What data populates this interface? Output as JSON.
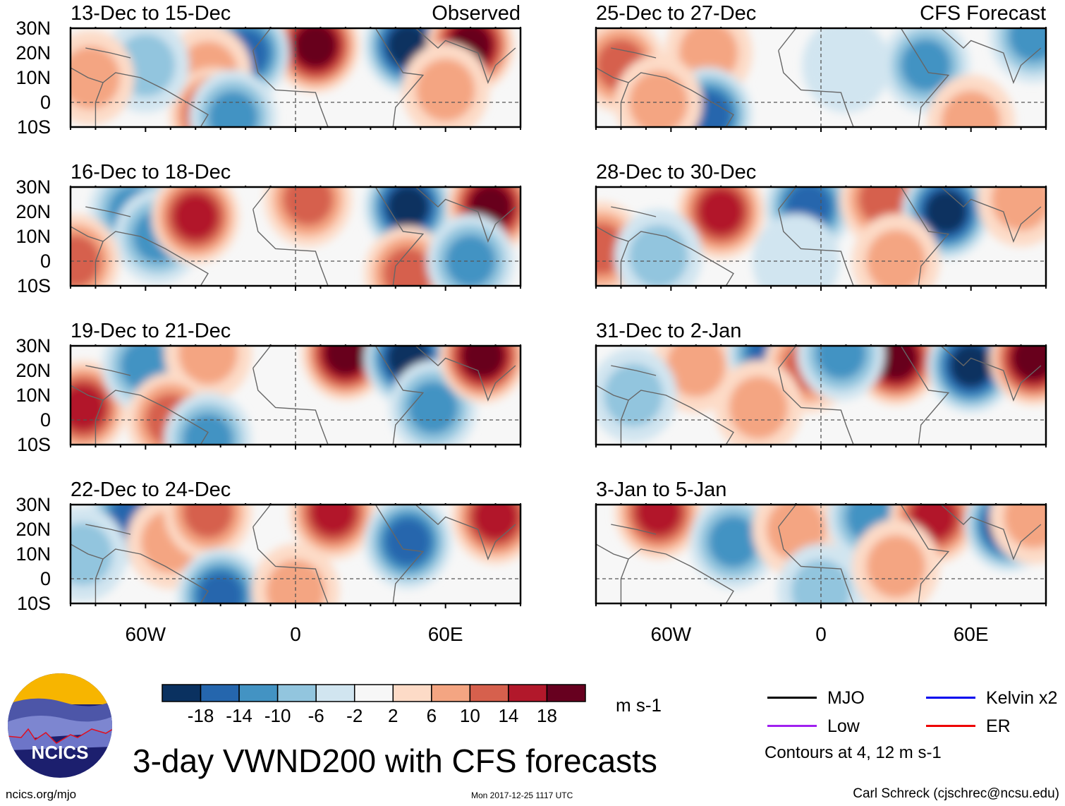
{
  "figure": {
    "title": "3-day VWND200 with CFS forecasts",
    "units": "m s-1",
    "site": "ncics.org/mjo",
    "timestamp": "Mon 2017-12-25 1117 UTC",
    "author": "Carl Schreck (cjschrec@ncsu.edu)",
    "logo_text": "NCICS",
    "observed_tag": "Observed",
    "forecast_tag": "CFS Forecast"
  },
  "chart_data": {
    "type": "heatmap",
    "title": "3-day VWND200 with CFS forecasts",
    "variable": "200-hPa meridional wind anomaly",
    "units": "m s-1",
    "lon_range": [
      -90,
      90
    ],
    "lat_range": [
      -10,
      30
    ],
    "y_ticks": [
      "30N",
      "20N",
      "10N",
      "0",
      "10S"
    ],
    "x_ticks": [
      "60W",
      "0",
      "60E"
    ],
    "colorbar": {
      "levels": [
        "-18",
        "-14",
        "-10",
        "-6",
        "-2",
        "2",
        "6",
        "10",
        "14",
        "18"
      ],
      "colors": [
        "#0a3160",
        "#2566ad",
        "#4393c3",
        "#92c5de",
        "#d1e5f0",
        "#f7f7f7",
        "#fddbc7",
        "#f4a582",
        "#d6604d",
        "#b2182b",
        "#67001f"
      ]
    },
    "legend": {
      "items": [
        {
          "label": "MJO",
          "color": "#000000"
        },
        {
          "label": "Kelvin x2",
          "color": "#0000ee"
        },
        {
          "label": "Low",
          "color": "#a020f0"
        },
        {
          "label": "ER",
          "color": "#ee0000"
        }
      ],
      "note": "Contours at 4, 12 m s-1",
      "placement": "bottom-right"
    },
    "panels": [
      {
        "title": "13-Dec to 15-Dec",
        "kind": "observed",
        "anomalies": [
          {
            "lon": 8,
            "lat": 23,
            "v": 20
          },
          {
            "lon": 45,
            "lat": 23,
            "v": -20
          },
          {
            "lon": 70,
            "lat": 23,
            "v": 18
          },
          {
            "lon": -20,
            "lat": 20,
            "v": -14
          },
          {
            "lon": -35,
            "lat": 12,
            "v": 8
          },
          {
            "lon": -33,
            "lat": -5,
            "v": 16
          },
          {
            "lon": -60,
            "lat": 15,
            "v": -8
          },
          {
            "lon": -82,
            "lat": 10,
            "v": 8
          },
          {
            "lon": -25,
            "lat": -6,
            "v": -10
          },
          {
            "lon": 60,
            "lat": 5,
            "v": 8
          }
        ]
      },
      {
        "title": "25-Dec to 27-Dec",
        "kind": "forecast",
        "anomalies": [
          {
            "lon": -80,
            "lat": 15,
            "v": 10
          },
          {
            "lon": -45,
            "lat": 20,
            "v": 8
          },
          {
            "lon": -45,
            "lat": -5,
            "v": -16
          },
          {
            "lon": 42,
            "lat": 15,
            "v": -10
          },
          {
            "lon": 10,
            "lat": 15,
            "v": -4
          },
          {
            "lon": 85,
            "lat": 27,
            "v": -10
          },
          {
            "lon": 60,
            "lat": -8,
            "v": 8
          },
          {
            "lon": -65,
            "lat": 0,
            "v": 6
          }
        ]
      },
      {
        "title": "16-Dec to 18-Dec",
        "kind": "observed",
        "anomalies": [
          {
            "lon": -65,
            "lat": 20,
            "v": -10
          },
          {
            "lon": -55,
            "lat": 10,
            "v": -12
          },
          {
            "lon": -40,
            "lat": 18,
            "v": 14
          },
          {
            "lon": 5,
            "lat": 25,
            "v": 12
          },
          {
            "lon": 45,
            "lat": 22,
            "v": -20
          },
          {
            "lon": 78,
            "lat": 22,
            "v": 18
          },
          {
            "lon": 45,
            "lat": -5,
            "v": 12
          },
          {
            "lon": 70,
            "lat": 0,
            "v": -12
          },
          {
            "lon": -88,
            "lat": 0,
            "v": 10
          }
        ]
      },
      {
        "title": "28-Dec to 30-Dec",
        "kind": "forecast",
        "anomalies": [
          {
            "lon": -40,
            "lat": 20,
            "v": 16
          },
          {
            "lon": -5,
            "lat": 22,
            "v": -14
          },
          {
            "lon": 25,
            "lat": 25,
            "v": 12
          },
          {
            "lon": 50,
            "lat": 20,
            "v": -18
          },
          {
            "lon": 80,
            "lat": 25,
            "v": 6
          },
          {
            "lon": -88,
            "lat": 5,
            "v": 10
          },
          {
            "lon": -65,
            "lat": 2,
            "v": -6
          },
          {
            "lon": -10,
            "lat": 0,
            "v": -4
          },
          {
            "lon": 30,
            "lat": 0,
            "v": 6
          }
        ]
      },
      {
        "title": "19-Dec to 21-Dec",
        "kind": "observed",
        "anomalies": [
          {
            "lon": -85,
            "lat": 5,
            "v": 16
          },
          {
            "lon": -60,
            "lat": 22,
            "v": -10
          },
          {
            "lon": -35,
            "lat": 27,
            "v": 6
          },
          {
            "lon": 20,
            "lat": 27,
            "v": 18
          },
          {
            "lon": 45,
            "lat": 25,
            "v": -20
          },
          {
            "lon": 55,
            "lat": 5,
            "v": -12
          },
          {
            "lon": 75,
            "lat": 26,
            "v": 18
          },
          {
            "lon": -50,
            "lat": 0,
            "v": 10
          },
          {
            "lon": -35,
            "lat": -8,
            "v": -10
          }
        ]
      },
      {
        "title": "31-Dec to 2-Jan",
        "kind": "forecast",
        "anomalies": [
          {
            "lon": -50,
            "lat": 22,
            "v": 8
          },
          {
            "lon": -20,
            "lat": 27,
            "v": -14
          },
          {
            "lon": -5,
            "lat": 22,
            "v": 10
          },
          {
            "lon": 30,
            "lat": 25,
            "v": 20
          },
          {
            "lon": 60,
            "lat": 22,
            "v": -20
          },
          {
            "lon": 85,
            "lat": 25,
            "v": 18
          },
          {
            "lon": -75,
            "lat": 10,
            "v": -8
          },
          {
            "lon": 8,
            "lat": 27,
            "v": -10
          },
          {
            "lon": -25,
            "lat": 5,
            "v": 6
          }
        ]
      },
      {
        "title": "22-Dec to 24-Dec",
        "kind": "observed",
        "anomalies": [
          {
            "lon": -65,
            "lat": 25,
            "v": -16
          },
          {
            "lon": -50,
            "lat": 15,
            "v": 8
          },
          {
            "lon": -35,
            "lat": 27,
            "v": 10
          },
          {
            "lon": 15,
            "lat": 27,
            "v": 16
          },
          {
            "lon": 45,
            "lat": 15,
            "v": -16
          },
          {
            "lon": 80,
            "lat": 25,
            "v": 16
          },
          {
            "lon": -30,
            "lat": -7,
            "v": -16
          },
          {
            "lon": 0,
            "lat": -5,
            "v": 6
          },
          {
            "lon": -85,
            "lat": 10,
            "v": -6
          }
        ]
      },
      {
        "title": "3-Jan to 5-Jan",
        "kind": "forecast",
        "anomalies": [
          {
            "lon": -65,
            "lat": 27,
            "v": 16
          },
          {
            "lon": -35,
            "lat": 15,
            "v": -10
          },
          {
            "lon": -10,
            "lat": 20,
            "v": 8
          },
          {
            "lon": 20,
            "lat": 25,
            "v": -10
          },
          {
            "lon": 45,
            "lat": 25,
            "v": 14
          },
          {
            "lon": 75,
            "lat": 22,
            "v": -18
          },
          {
            "lon": 85,
            "lat": 25,
            "v": 8
          },
          {
            "lon": 0,
            "lat": -5,
            "v": -6
          },
          {
            "lon": 30,
            "lat": 5,
            "v": 6
          }
        ]
      }
    ]
  }
}
